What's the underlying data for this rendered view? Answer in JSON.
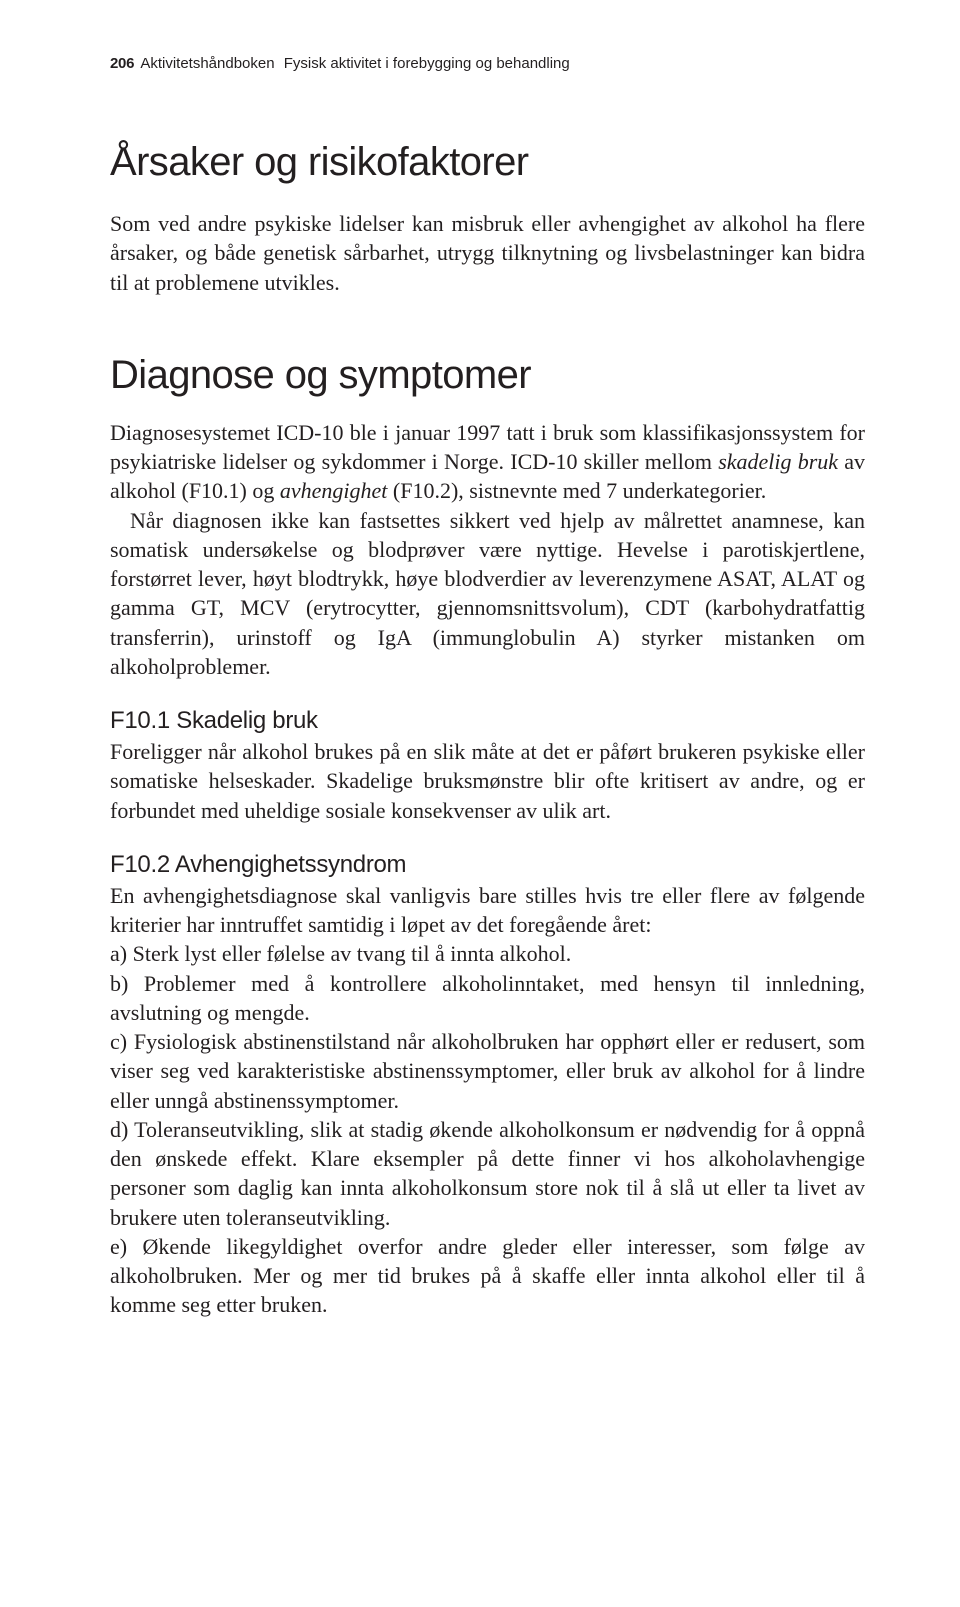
{
  "header": {
    "page_number": "206",
    "book_title": "Aktivitetshåndboken",
    "book_subtitle": "Fysisk aktivitet i forebygging og behandling"
  },
  "section1": {
    "title": "Årsaker og risikofaktorer",
    "p1": "Som ved andre psykiske lidelser kan misbruk eller avhengighet av alkohol ha flere årsaker, og både genetisk sårbarhet, utrygg tilknytning og livsbelastninger kan bidra til at problemene utvikles."
  },
  "section2": {
    "title": "Diagnose og symptomer",
    "p1a": "Diagnosesystemet ICD-10 ble i januar 1997 tatt i bruk som klassifikasjonssystem for psykiatriske lidelser og sykdommer i Norge. ICD-10 skiller mellom ",
    "p1b": "skadelig bruk",
    "p1c": " av alkohol (F10.1) og ",
    "p1d": "avhengighet",
    "p1e": " (F10.2), sistnevnte med 7 underkategorier.",
    "p2": "Når diagnosen ikke kan fastsettes sikkert ved hjelp av målrettet anamnese, kan somatisk undersøkelse og blodprøver være nyttige. Hevelse i parotiskjertlene, forstørret lever, høyt blodtrykk, høye blodverdier av leverenzymene ASAT, ALAT og gamma GT, MCV (erytrocytter, gjennomsnittsvolum), CDT (karbohydratfattig transferrin), urinstoff og IgA (immunglobulin A) styrker mistanken om alkoholproblemer."
  },
  "section3": {
    "title": "F10.1 Skadelig bruk",
    "p1": "Foreligger når alkohol brukes på en slik måte at det er påført brukeren psykiske eller somatiske helseskader. Skadelige bruksmønstre blir ofte kritisert av andre, og er forbundet med uheldige sosiale konsekvenser av ulik art."
  },
  "section4": {
    "title": "F10.2 Avhengighetssyndrom",
    "p1": "En avhengighetsdiagnose skal vanligvis bare stilles hvis tre eller flere av følgende kriterier har inntruffet samtidig i løpet av det foregående året:",
    "a": "a) Sterk lyst eller følelse av tvang til å innta alkohol.",
    "b": "b) Problemer med å kontrollere alkoholinntaket, med hensyn til innledning, avslutning og mengde.",
    "c": "c) Fysiologisk abstinenstilstand når alkoholbruken har opphørt eller er redusert, som viser seg ved karakteristiske abstinenssymptomer, eller bruk av alkohol for å lindre eller unngå abstinenssymptomer.",
    "d": "d) Toleranseutvikling, slik at stadig økende alkoholkonsum er nødvendig for å oppnå den ønskede effekt. Klare eksempler på dette finner vi hos alkoholavhengige personer som daglig kan innta alkoholkonsum store nok til å slå ut eller ta livet av brukere uten toleranseutvikling.",
    "e": "e) Økende likegyldighet overfor andre gleder eller interesser, som følge av alkoholbruken. Mer og mer tid brukes på å skaffe eller innta alkohol eller til å komme seg etter bruken."
  }
}
